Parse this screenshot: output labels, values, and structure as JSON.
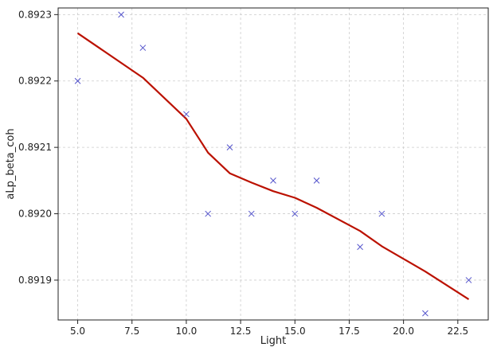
{
  "chart_data": {
    "type": "scatter",
    "xlabel": "Light",
    "ylabel": "aLp_beta_coh",
    "xlim": [
      4.1,
      23.9
    ],
    "ylim": [
      0.89184,
      0.89231
    ],
    "grid": true,
    "x_ticks": [
      5.0,
      7.5,
      10.0,
      12.5,
      15.0,
      17.5,
      20.0,
      22.5
    ],
    "x_tick_labels": [
      "5.0",
      "7.5",
      "10.0",
      "12.5",
      "15.0",
      "17.5",
      "20.0",
      "22.5"
    ],
    "y_ticks": [
      0.8919,
      0.892,
      0.8921,
      0.8922,
      0.8923
    ],
    "y_tick_labels": [
      "0.8919",
      "0.8920",
      "0.8921",
      "0.8922",
      "0.8923"
    ],
    "series": [
      {
        "kind": "scatter",
        "marker": "x",
        "color": "#5555cc",
        "x": [
          5,
          7,
          8,
          10,
          11,
          12,
          13,
          14,
          15,
          16,
          18,
          19,
          21,
          23
        ],
        "y": [
          0.8922,
          0.8923,
          0.89225,
          0.89215,
          0.892,
          0.8921,
          0.892,
          0.89205,
          0.892,
          0.89205,
          0.89195,
          0.892,
          0.89185,
          0.8919
        ]
      },
      {
        "kind": "line",
        "color": "#bb1100",
        "x": [
          5,
          8,
          10,
          11,
          12,
          13,
          14,
          15,
          16,
          18,
          19,
          21,
          23
        ],
        "y": [
          0.892272,
          0.892205,
          0.892143,
          0.892092,
          0.892061,
          0.892047,
          0.892034,
          0.892024,
          0.892009,
          0.891974,
          0.891951,
          0.891913,
          0.891871
        ]
      }
    ]
  }
}
